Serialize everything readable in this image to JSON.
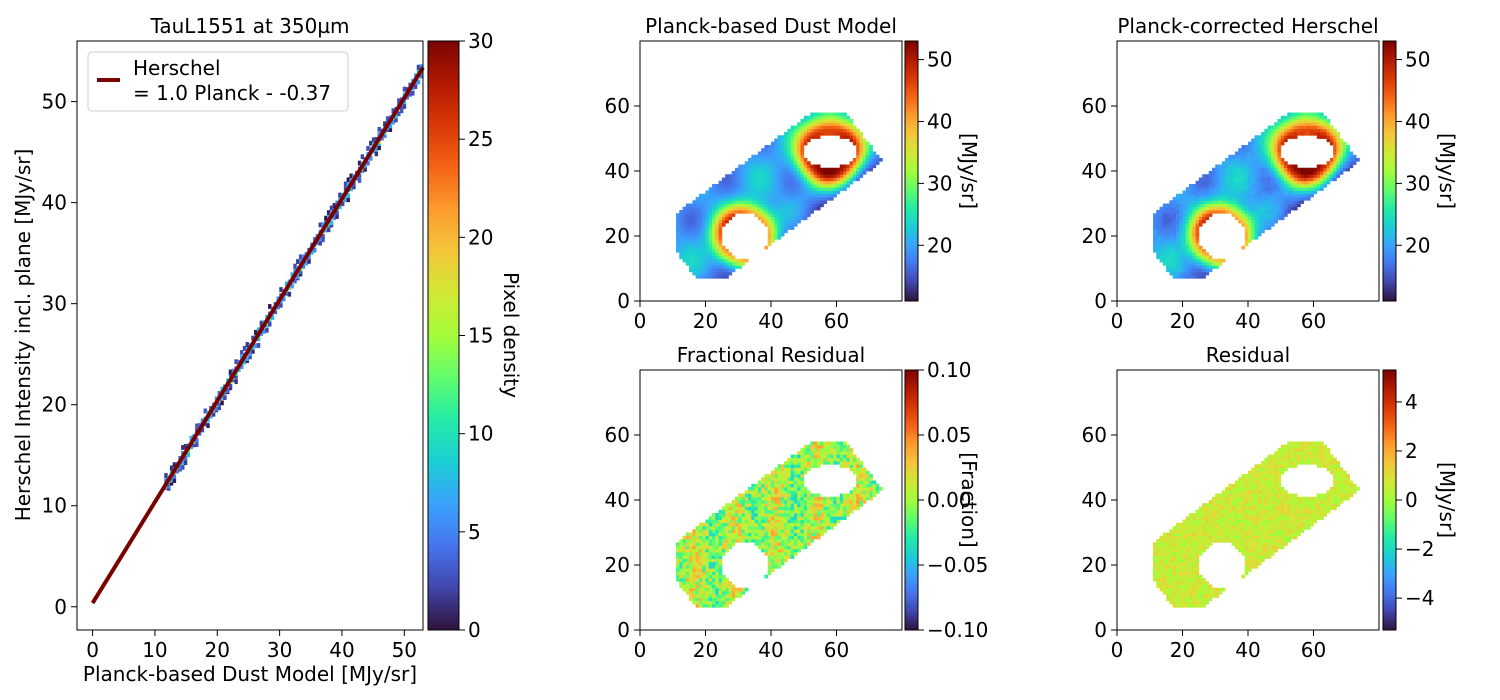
{
  "colors": {
    "turbo": [
      "#30123b",
      "#4145ab",
      "#4675ed",
      "#39a2fc",
      "#1bcfd4",
      "#24eca6",
      "#61fc6c",
      "#a4fc3b",
      "#d1e834",
      "#f3c63a",
      "#fe9b2d",
      "#f36315",
      "#d93806",
      "#b11901",
      "#7a0402"
    ],
    "fit_line": "#7a0000",
    "fit_line_inner": "#c8c8c8"
  },
  "chart_data": [
    {
      "type": "scatter",
      "subtype": "2d-histogram",
      "title": "TauL1551 at 350µm",
      "xlabel": "Planck-based Dust Model [MJy/sr]",
      "ylabel": "Herschel Intensity incl. plane [MJy/sr]",
      "xlim": [
        -2.5,
        53
      ],
      "ylim": [
        -2.3,
        56
      ],
      "xticks": [
        "0",
        "10",
        "20",
        "30",
        "40",
        "50"
      ],
      "yticks": [
        "0",
        "10",
        "20",
        "30",
        "40",
        "50"
      ],
      "fit": {
        "slope": 1.0,
        "intercept": 0.37,
        "x_range": [
          0,
          53
        ]
      },
      "legend": {
        "label_line1": "Herschel",
        "label_line2": "= 1.0 Planck - -0.37",
        "position": "upper-left"
      },
      "colorbar": {
        "label": "Pixel density",
        "range": [
          0,
          30
        ],
        "ticks": [
          "0",
          "5",
          "10",
          "15",
          "20",
          "25",
          "30"
        ]
      }
    },
    {
      "type": "heatmap",
      "title": "Planck-based Dust Model",
      "xlim": [
        0,
        80
      ],
      "ylim": [
        0,
        80
      ],
      "xticks": [
        "0",
        "20",
        "40",
        "60"
      ],
      "yticks": [
        "0",
        "20",
        "40",
        "60"
      ],
      "colorbar": {
        "label": "[MJy/sr]",
        "range": [
          11,
          53
        ],
        "ticks": [
          "20",
          "30",
          "40",
          "50"
        ]
      }
    },
    {
      "type": "heatmap",
      "title": "Planck-corrected Herschel",
      "xlim": [
        0,
        80
      ],
      "ylim": [
        0,
        80
      ],
      "xticks": [
        "0",
        "20",
        "40",
        "60"
      ],
      "yticks": [
        "0",
        "20",
        "40",
        "60"
      ],
      "colorbar": {
        "label": "[MJy/sr]",
        "range": [
          11,
          53
        ],
        "ticks": [
          "20",
          "30",
          "40",
          "50"
        ]
      }
    },
    {
      "type": "heatmap",
      "title": "Fractional Residual",
      "xlim": [
        0,
        80
      ],
      "ylim": [
        0,
        80
      ],
      "xticks": [
        "0",
        "20",
        "40",
        "60"
      ],
      "yticks": [
        "0",
        "20",
        "40",
        "60"
      ],
      "colorbar": {
        "label": "[Fraction]",
        "range": [
          -0.1,
          0.1
        ],
        "ticks": [
          "−0.10",
          "−0.05",
          "0.00",
          "0.05",
          "0.10"
        ]
      }
    },
    {
      "type": "heatmap",
      "title": "Residual",
      "xlim": [
        0,
        80
      ],
      "ylim": [
        0,
        80
      ],
      "xticks": [
        "0",
        "20",
        "40",
        "60"
      ],
      "yticks": [
        "0",
        "20",
        "40",
        "60"
      ],
      "colorbar": {
        "label": "[MJy/sr]",
        "range": [
          -5.3,
          5.3
        ],
        "ticks": [
          "−4",
          "−2",
          "0",
          "2",
          "4"
        ]
      }
    }
  ]
}
